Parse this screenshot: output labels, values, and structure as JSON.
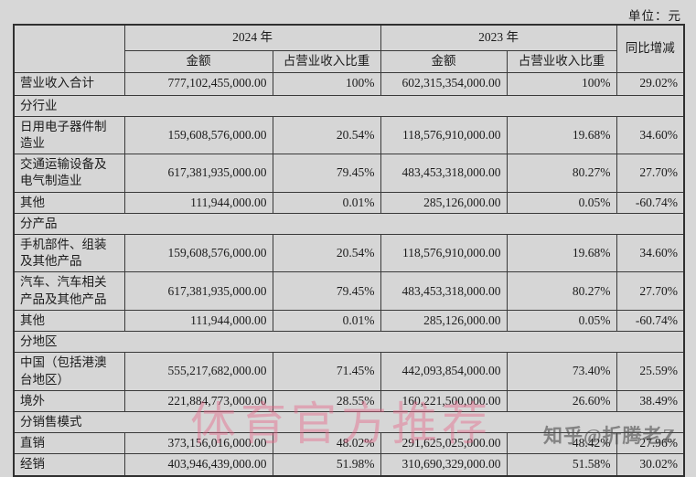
{
  "page": {
    "unit_label": "单位：元",
    "background_color": "#d7d7d7",
    "cell_white": "#fdfdfd",
    "cell_gray": "#d6d6d6",
    "watermark_pink_color": "#e86185",
    "watermark_gray_color": "#464646"
  },
  "watermarks": {
    "center": "体育官方推荐",
    "zhihu": "知乎@折腾老Z"
  },
  "table": {
    "headers": {
      "year_2024": "2024 年",
      "year_2023": "2023 年",
      "yoy": "同比增减",
      "amount_2024": "金额",
      "ratio_2024": "占营业收入比重",
      "amount_2023": "金额",
      "ratio_2023": "占营业收入比重"
    },
    "rows": [
      {
        "type": "data",
        "ratio_cells_shaded": true,
        "label": "营业收入合计",
        "amount_2024": "777,102,455,000.00",
        "ratio_2024": "100%",
        "amount_2023": "602,315,354,000.00",
        "ratio_2023": "100%",
        "yoy": "29.02%"
      },
      {
        "type": "section",
        "label": "分行业"
      },
      {
        "type": "data",
        "label": "日用电子器件制造业",
        "amount_2024": "159,608,576,000.00",
        "ratio_2024": "20.54%",
        "amount_2023": "118,576,910,000.00",
        "ratio_2023": "19.68%",
        "yoy": "34.60%"
      },
      {
        "type": "data",
        "label": "交通运输设备及电气制造业",
        "amount_2024": "617,381,935,000.00",
        "ratio_2024": "79.45%",
        "amount_2023": "483,453,318,000.00",
        "ratio_2023": "80.27%",
        "yoy": "27.70%"
      },
      {
        "type": "data",
        "label": "其他",
        "amount_2024": "111,944,000.00",
        "ratio_2024": "0.01%",
        "amount_2023": "285,126,000.00",
        "ratio_2023": "0.05%",
        "yoy": "-60.74%"
      },
      {
        "type": "section",
        "label": "分产品"
      },
      {
        "type": "data",
        "label": "手机部件、组装及其他产品",
        "amount_2024": "159,608,576,000.00",
        "ratio_2024": "20.54%",
        "amount_2023": "118,576,910,000.00",
        "ratio_2023": "19.68%",
        "yoy": "34.60%"
      },
      {
        "type": "data",
        "label": "汽车、汽车相关产品及其他产品",
        "amount_2024": "617,381,935,000.00",
        "ratio_2024": "79.45%",
        "amount_2023": "483,453,318,000.00",
        "ratio_2023": "80.27%",
        "yoy": "27.70%"
      },
      {
        "type": "data",
        "label": "其他",
        "amount_2024": "111,944,000.00",
        "ratio_2024": "0.01%",
        "amount_2023": "285,126,000.00",
        "ratio_2023": "0.05%",
        "yoy": "-60.74%"
      },
      {
        "type": "section",
        "label": "分地区"
      },
      {
        "type": "data",
        "label": "中国（包括港澳台地区）",
        "amount_2024": "555,217,682,000.00",
        "ratio_2024": "71.45%",
        "amount_2023": "442,093,854,000.00",
        "ratio_2023": "73.40%",
        "yoy": "25.59%"
      },
      {
        "type": "data",
        "label": "境外",
        "amount_2024": "221,884,773,000.00",
        "ratio_2024": "28.55%",
        "amount_2023": "160,221,500,000.00",
        "ratio_2023": "26.60%",
        "yoy": "38.49%"
      },
      {
        "type": "section",
        "label": "分销售模式"
      },
      {
        "type": "data",
        "label": "直销",
        "amount_2024": "373,156,016,000.00",
        "ratio_2024": "48.02%",
        "amount_2023": "291,625,025,000.00",
        "ratio_2023": "48.42%",
        "yoy": "27.96%"
      },
      {
        "type": "data",
        "label": "经销",
        "amount_2024": "403,946,439,000.00",
        "ratio_2024": "51.98%",
        "amount_2023": "310,690,329,000.00",
        "ratio_2023": "51.58%",
        "yoy": "30.02%"
      }
    ]
  }
}
